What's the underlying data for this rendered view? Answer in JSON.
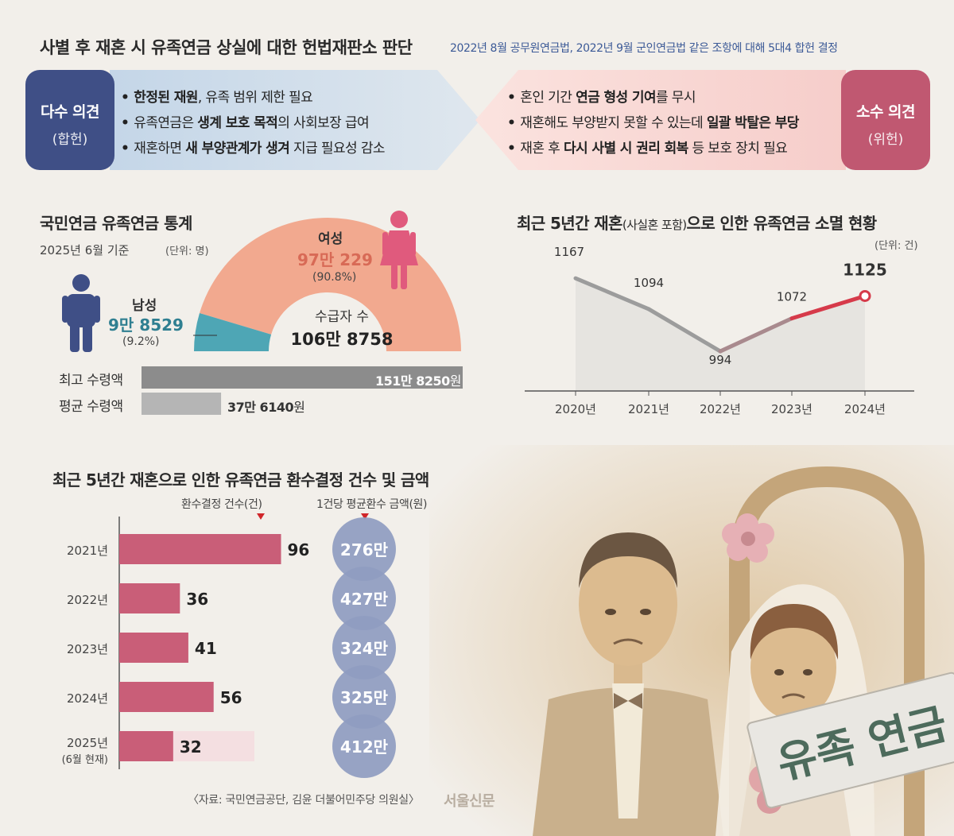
{
  "header": {
    "title": "사별 후 재혼 시 유족연금 상실에 대한 헌법재판소 판단",
    "subtitle": "2022년 8월 공무원연금법, 2022년 9월 군인연금법 같은 조항에 대해 5대4 합헌 결정"
  },
  "majority": {
    "title": "다수 의견",
    "verdict": "(합헌)",
    "points": [
      {
        "pre": "",
        "bold": "한정된 재원",
        "post": ", 유족 범위 제한 필요"
      },
      {
        "pre": "유족연금은 ",
        "bold": "생계 보호 목적",
        "post": "의 사회보장 급여"
      },
      {
        "pre": "재혼하면 ",
        "bold": "새 부양관계가 생겨",
        "post": " 지급 필요성 감소"
      }
    ]
  },
  "minority": {
    "title": "소수 의견",
    "verdict": "(위헌)",
    "points": [
      {
        "pre": "혼인 기간 ",
        "bold": "연금 형성 기여",
        "post": "를 무시"
      },
      {
        "pre": "재혼해도 부양받지 못할 수 있는데 ",
        "bold": "일괄 박탈은 부당",
        "post": ""
      },
      {
        "pre": "재혼 후 ",
        "bold": "다시 사별 시 권리 회복",
        "post": " 등 보호 장치 필요"
      }
    ]
  },
  "pension_stats": {
    "title": "국민연금 유족연금 통계",
    "basis": "2025년 6월 기준",
    "unit": "(단위: 명)",
    "female_label": "여성",
    "female_value": "97만 229",
    "female_pct": "(90.8%)",
    "male_label": "남성",
    "male_value": "9만 8529",
    "male_pct": "(9.2%)",
    "total_label": "수급자 수",
    "total_value": "106만 8758",
    "max_label": "최고 수령액",
    "max_value": "151만 8250",
    "avg_label": "평균 수령액",
    "avg_value": "37만 6140",
    "won": "원",
    "colors": {
      "female": "#f2a98f",
      "male": "#4ea6b5",
      "female_icon": "#e05a7d",
      "male_icon": "#3f4f86"
    }
  },
  "chart_data": [
    {
      "type": "pie",
      "title": "국민연금 유족연금 통계",
      "slices": [
        {
          "label": "여성",
          "value": 970229,
          "pct": 90.8
        },
        {
          "label": "남성",
          "value": 98529,
          "pct": 9.2
        }
      ],
      "total": 1068758
    },
    {
      "type": "bar",
      "orientation": "horizontal",
      "categories": [
        "최고 수령액",
        "평균 수령액"
      ],
      "values": [
        1518250,
        376140
      ],
      "unit": "원"
    },
    {
      "type": "line",
      "title": "최근 5년간 재혼(사실혼 포함)으로 인한 유족연금 소멸 현황",
      "unit": "(단위: 건)",
      "x": [
        "2020년",
        "2021년",
        "2022년",
        "2023년",
        "2024년"
      ],
      "values": [
        1167,
        1094,
        994,
        1072,
        1125
      ],
      "value_labels": [
        "1167",
        "1094",
        "994",
        "1072",
        "1125"
      ],
      "ylim": [
        900,
        1220
      ]
    },
    {
      "type": "bar",
      "orientation": "horizontal",
      "title": "최근 5년간 재혼으로 인한 유족연금 환수결정 건수 및 금액",
      "col1_header": "환수결정 건수(건)",
      "col2_header": "1건당 평균환수 금액(원)",
      "categories": [
        "2021년",
        "2022년",
        "2023년",
        "2024년",
        "2025년"
      ],
      "sub_labels": [
        "",
        "",
        "",
        "",
        "(6월 현재)"
      ],
      "values": [
        96,
        36,
        41,
        56,
        32
      ],
      "amounts": [
        "276만",
        "427만",
        "324만",
        "325만",
        "412만"
      ],
      "amount_values": [
        2760000,
        4270000,
        3240000,
        3250000,
        4120000
      ]
    }
  ],
  "footer": {
    "source": "〈자료: 국민연금공단, 김윤 더불어민주당 의원실〉",
    "brand": "서울신문",
    "sign_text": "유족 연금"
  }
}
